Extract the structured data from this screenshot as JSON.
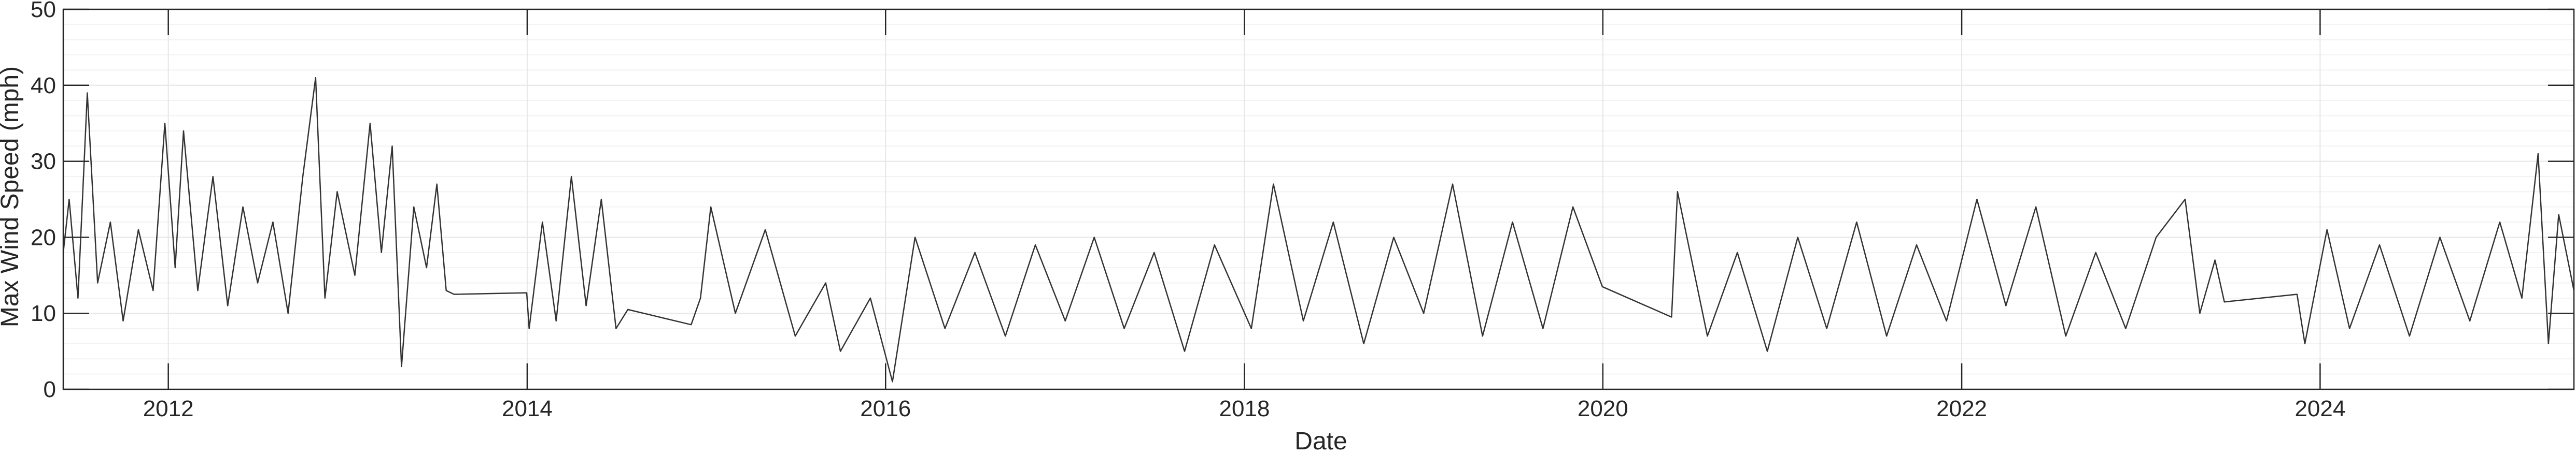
{
  "chart_data": {
    "type": "line",
    "title": "",
    "xlabel": "Date",
    "ylabel": "Max Wind Speed (mph)",
    "xlim": [
      "2011-06-01",
      "2025-06-01"
    ],
    "ylim": [
      0,
      50
    ],
    "xticks": [
      "2012",
      "2014",
      "2016",
      "2018",
      "2020",
      "2022",
      "2024"
    ],
    "yticks": [
      "0",
      "10",
      "20",
      "30",
      "40",
      "50"
    ],
    "grid": true,
    "minor_grid": true,
    "legend": "none",
    "colors": {
      "line": "#333333",
      "axes": "#262626",
      "grid": "#e6e6e6",
      "minor_grid": "#f2f2f2"
    },
    "series": [
      {
        "points": [
          [
            "2011-06-01",
            18
          ],
          [
            "2011-06-13",
            25
          ],
          [
            "2011-07-01",
            12
          ],
          [
            "2011-07-20",
            39
          ],
          [
            "2011-08-10",
            14
          ],
          [
            "2011-09-05",
            22
          ],
          [
            "2011-10-01",
            9
          ],
          [
            "2011-11-01",
            21
          ],
          [
            "2011-12-01",
            13
          ],
          [
            "2011-12-25",
            35
          ],
          [
            "2012-01-15",
            16
          ],
          [
            "2012-02-01",
            34
          ],
          [
            "2012-03-01",
            13
          ],
          [
            "2012-04-01",
            28
          ],
          [
            "2012-05-01",
            11
          ],
          [
            "2012-06-01",
            24
          ],
          [
            "2012-07-01",
            14
          ],
          [
            "2012-08-01",
            22
          ],
          [
            "2012-09-01",
            10
          ],
          [
            "2012-10-01",
            28
          ],
          [
            "2012-10-27",
            41
          ],
          [
            "2012-11-15",
            12
          ],
          [
            "2012-12-10",
            26
          ],
          [
            "2013-01-15",
            15
          ],
          [
            "2013-02-15",
            35
          ],
          [
            "2013-03-10",
            18
          ],
          [
            "2013-04-01",
            32
          ],
          [
            "2013-04-20",
            3
          ],
          [
            "2013-05-15",
            24
          ],
          [
            "2013-06-10",
            16
          ],
          [
            "2013-07-01",
            27
          ],
          [
            "2013-07-20",
            13
          ],
          [
            "2013-08-05",
            12.5
          ],
          [
            "2013-12-31",
            12.7
          ],
          [
            "2014-01-05",
            8
          ],
          [
            "2014-02-01",
            22
          ],
          [
            "2014-03-01",
            9
          ],
          [
            "2014-04-01",
            28
          ],
          [
            "2014-05-01",
            11
          ],
          [
            "2014-06-01",
            25
          ],
          [
            "2014-07-01",
            8
          ],
          [
            "2014-07-25",
            10.5
          ],
          [
            "2014-12-01",
            8.5
          ],
          [
            "2014-12-20",
            12
          ],
          [
            "2015-01-10",
            24
          ],
          [
            "2015-03-01",
            10
          ],
          [
            "2015-05-01",
            21
          ],
          [
            "2015-07-01",
            7
          ],
          [
            "2015-09-01",
            14
          ],
          [
            "2015-10-01",
            5
          ],
          [
            "2015-12-01",
            12
          ],
          [
            "2016-01-15",
            1
          ],
          [
            "2016-03-01",
            20
          ],
          [
            "2016-05-01",
            8
          ],
          [
            "2016-07-01",
            18
          ],
          [
            "2016-09-01",
            7
          ],
          [
            "2016-11-01",
            19
          ],
          [
            "2017-01-01",
            9
          ],
          [
            "2017-03-01",
            20
          ],
          [
            "2017-05-01",
            8
          ],
          [
            "2017-07-01",
            18
          ],
          [
            "2017-09-01",
            5
          ],
          [
            "2017-11-01",
            19
          ],
          [
            "2018-01-15",
            8
          ],
          [
            "2018-03-01",
            27
          ],
          [
            "2018-05-01",
            9
          ],
          [
            "2018-07-01",
            22
          ],
          [
            "2018-09-01",
            6
          ],
          [
            "2018-11-01",
            20
          ],
          [
            "2019-01-01",
            10
          ],
          [
            "2019-03-01",
            27
          ],
          [
            "2019-05-01",
            7
          ],
          [
            "2019-07-01",
            22
          ],
          [
            "2019-09-01",
            8
          ],
          [
            "2019-11-01",
            24
          ],
          [
            "2019-12-31",
            13.5
          ],
          [
            "2020-05-20",
            9.5
          ],
          [
            "2020-06-01",
            26
          ],
          [
            "2020-08-01",
            7
          ],
          [
            "2020-10-01",
            18
          ],
          [
            "2020-12-01",
            5
          ],
          [
            "2021-02-01",
            20
          ],
          [
            "2021-04-01",
            8
          ],
          [
            "2021-06-01",
            22
          ],
          [
            "2021-08-01",
            7
          ],
          [
            "2021-10-01",
            19
          ],
          [
            "2021-12-01",
            9
          ],
          [
            "2022-02-01",
            25
          ],
          [
            "2022-04-01",
            11
          ],
          [
            "2022-06-01",
            24
          ],
          [
            "2022-08-01",
            7
          ],
          [
            "2022-10-01",
            18
          ],
          [
            "2022-12-01",
            8
          ],
          [
            "2023-02-01",
            20
          ],
          [
            "2023-04-01",
            25
          ],
          [
            "2023-05-01",
            10
          ],
          [
            "2023-06-01",
            17
          ],
          [
            "2023-06-20",
            11.5
          ],
          [
            "2023-11-15",
            12.5
          ],
          [
            "2023-12-01",
            6
          ],
          [
            "2024-01-15",
            21
          ],
          [
            "2024-03-01",
            8
          ],
          [
            "2024-05-01",
            19
          ],
          [
            "2024-07-01",
            7
          ],
          [
            "2024-09-01",
            20
          ],
          [
            "2024-11-01",
            9
          ],
          [
            "2025-01-01",
            22
          ],
          [
            "2025-02-15",
            12
          ],
          [
            "2025-03-20",
            31
          ],
          [
            "2025-04-10",
            6
          ],
          [
            "2025-05-01",
            23
          ],
          [
            "2025-06-01",
            13
          ]
        ]
      }
    ]
  }
}
